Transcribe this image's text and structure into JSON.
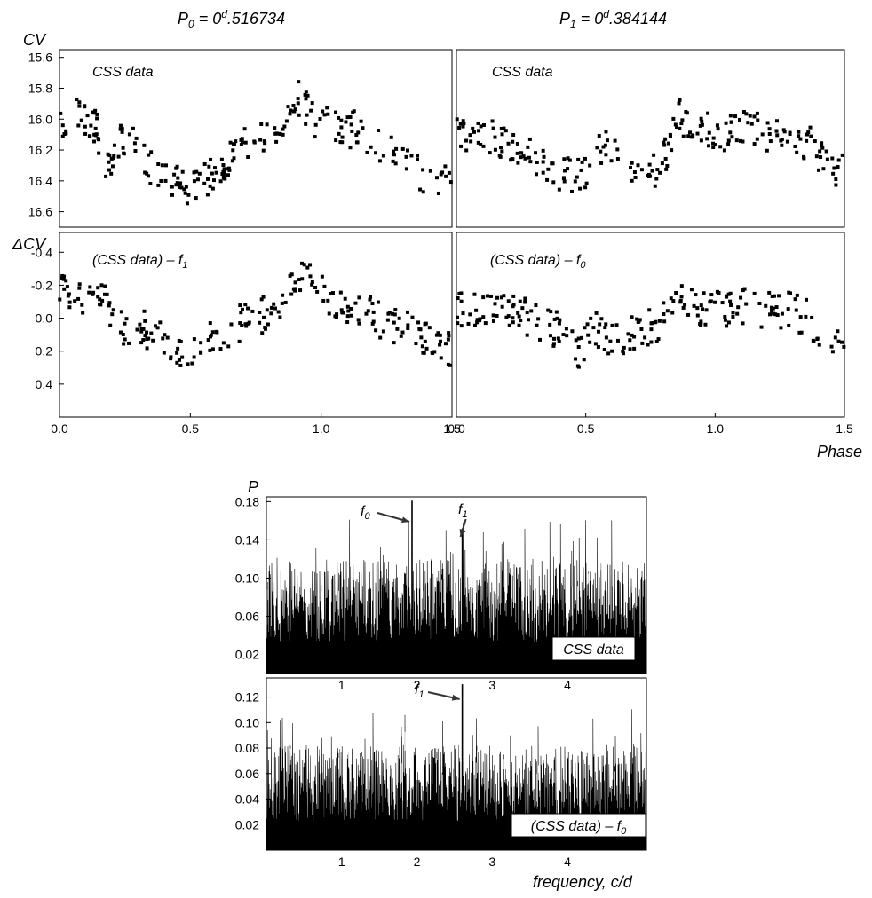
{
  "figure": {
    "period0": {
      "label": "P",
      "sub": "0",
      "eq": " = 0",
      "sup": "d",
      "value": ".516734"
    },
    "period1": {
      "label": "P",
      "sub": "1",
      "eq": " = 0",
      "sup": "d",
      "value": ".384144"
    },
    "ylabel_top": "CV",
    "ylabel_mid": "ΔCV",
    "xlabel_phase": "Phase",
    "ylabel_power": "P",
    "xlabel_freq": "frequency,  c/d"
  },
  "chart_data": [
    {
      "type": "scatter",
      "id": "lc_p0",
      "panel_label": "CSS data",
      "ylabel": "CV",
      "xlabel": "",
      "xlim": [
        0,
        1.5
      ],
      "ylim": [
        16.7,
        15.55
      ],
      "yticks": [
        15.6,
        15.8,
        16.0,
        16.2,
        16.4,
        16.6
      ],
      "xticks": [],
      "anchors": [
        [
          0,
          16.06
        ],
        [
          0.04,
          15.95
        ],
        [
          0.1,
          16.02
        ],
        [
          0.14,
          16.05
        ],
        [
          0.18,
          16.35
        ],
        [
          0.22,
          16.15
        ],
        [
          0.28,
          16.15
        ],
        [
          0.32,
          16.25
        ],
        [
          0.38,
          16.4
        ],
        [
          0.45,
          16.4
        ],
        [
          0.5,
          16.45
        ],
        [
          0.56,
          16.4
        ],
        [
          0.62,
          16.3
        ],
        [
          0.68,
          16.2
        ],
        [
          0.74,
          16.15
        ],
        [
          0.8,
          16.1
        ],
        [
          0.86,
          16.05
        ],
        [
          0.92,
          15.85
        ],
        [
          0.96,
          16.0
        ],
        [
          1.02,
          16.0
        ],
        [
          1.08,
          16.1
        ],
        [
          1.14,
          16.05
        ],
        [
          1.2,
          16.15
        ],
        [
          1.26,
          16.2
        ],
        [
          1.32,
          16.2
        ],
        [
          1.38,
          16.35
        ],
        [
          1.44,
          16.4
        ],
        [
          1.5,
          16.38
        ]
      ]
    },
    {
      "type": "scatter",
      "id": "lc_p1",
      "panel_label": "CSS data",
      "ylabel": "",
      "xlabel": "",
      "xlim": [
        0,
        1.5
      ],
      "ylim": [
        16.7,
        15.55
      ],
      "yticks": [],
      "xticks": [],
      "anchors": [
        [
          0,
          16.1
        ],
        [
          0.06,
          16.1
        ],
        [
          0.12,
          16.1
        ],
        [
          0.2,
          16.15
        ],
        [
          0.28,
          16.2
        ],
        [
          0.34,
          16.3
        ],
        [
          0.4,
          16.35
        ],
        [
          0.46,
          16.38
        ],
        [
          0.52,
          16.3
        ],
        [
          0.58,
          16.15
        ],
        [
          0.64,
          16.3
        ],
        [
          0.7,
          16.4
        ],
        [
          0.76,
          16.35
        ],
        [
          0.82,
          16.2
        ],
        [
          0.86,
          15.95
        ],
        [
          0.9,
          16.1
        ],
        [
          0.96,
          16.05
        ],
        [
          1.04,
          16.1
        ],
        [
          1.12,
          16.05
        ],
        [
          1.2,
          16.1
        ],
        [
          1.28,
          16.15
        ],
        [
          1.36,
          16.15
        ],
        [
          1.44,
          16.3
        ],
        [
          1.5,
          16.35
        ]
      ]
    },
    {
      "type": "scatter",
      "id": "res_p0",
      "panel_label": "(CSS data) – f",
      "panel_sub": "1",
      "ylabel": "ΔCV",
      "xlabel": "",
      "xlim": [
        0,
        1.5
      ],
      "ylim": [
        0.6,
        -0.52
      ],
      "yticks": [
        -0.4,
        -0.2,
        0.0,
        0.2,
        0.4
      ],
      "ytick_labels": [
        "-0.4",
        "-0.2",
        "0.0",
        "0.2",
        "0.4"
      ],
      "xticks": [
        0.0,
        0.5,
        1.0,
        1.5
      ],
      "anchors": [
        [
          0,
          -0.15
        ],
        [
          0.06,
          -0.15
        ],
        [
          0.12,
          -0.1
        ],
        [
          0.18,
          -0.1
        ],
        [
          0.22,
          0.05
        ],
        [
          0.3,
          0.05
        ],
        [
          0.38,
          0.1
        ],
        [
          0.46,
          0.2
        ],
        [
          0.54,
          0.2
        ],
        [
          0.6,
          0.1
        ],
        [
          0.66,
          0.05
        ],
        [
          0.74,
          0.0
        ],
        [
          0.82,
          -0.05
        ],
        [
          0.88,
          -0.2
        ],
        [
          0.94,
          -0.3
        ],
        [
          1.0,
          -0.15
        ],
        [
          1.06,
          -0.1
        ],
        [
          1.12,
          -0.05
        ],
        [
          1.18,
          -0.1
        ],
        [
          1.24,
          0.05
        ],
        [
          1.3,
          0.05
        ],
        [
          1.36,
          0.1
        ],
        [
          1.42,
          0.15
        ],
        [
          1.5,
          0.2
        ]
      ]
    },
    {
      "type": "scatter",
      "id": "res_p1",
      "panel_label": "(CSS data) – f",
      "panel_sub": "0",
      "ylabel": "",
      "xlabel": "Phase",
      "xlim": [
        0,
        1.5
      ],
      "ylim": [
        0.6,
        -0.52
      ],
      "yticks": [],
      "xticks": [
        0.0,
        0.5,
        1.0,
        1.5
      ],
      "anchors": [
        [
          0,
          -0.05
        ],
        [
          0.06,
          -0.05
        ],
        [
          0.12,
          -0.07
        ],
        [
          0.2,
          -0.05
        ],
        [
          0.28,
          0.0
        ],
        [
          0.36,
          0.05
        ],
        [
          0.42,
          0.1
        ],
        [
          0.48,
          0.2
        ],
        [
          0.54,
          0.05
        ],
        [
          0.6,
          0.15
        ],
        [
          0.66,
          0.1
        ],
        [
          0.72,
          0.05
        ],
        [
          0.78,
          0.05
        ],
        [
          0.84,
          -0.15
        ],
        [
          0.9,
          -0.1
        ],
        [
          0.96,
          -0.05
        ],
        [
          1.04,
          -0.05
        ],
        [
          1.12,
          -0.07
        ],
        [
          1.2,
          -0.05
        ],
        [
          1.28,
          -0.05
        ],
        [
          1.36,
          0.0
        ],
        [
          1.42,
          0.1
        ],
        [
          1.5,
          0.2
        ]
      ]
    },
    {
      "type": "bar",
      "id": "spec_raw",
      "panel_label": "CSS data",
      "ylabel": "P",
      "xlabel": "",
      "xlim": [
        0.0,
        5.05
      ],
      "ylim": [
        0,
        0.185
      ],
      "yticks": [
        0.02,
        0.06,
        0.1,
        0.14,
        0.18
      ],
      "ytick_labels": [
        "0.02",
        "0.06",
        "0.10",
        "0.14",
        "0.18"
      ],
      "xticks": [
        1,
        2,
        3,
        4
      ],
      "peaks": [
        {
          "name": "f0",
          "x": 1.935,
          "value": 0.181
        },
        {
          "name": "f1",
          "x": 2.603,
          "value": 0.152
        }
      ]
    },
    {
      "type": "bar",
      "id": "spec_res",
      "panel_label": "(CSS data) – f",
      "panel_sub": "0",
      "ylabel": "",
      "xlabel": "frequency,  c/d",
      "xlim": [
        0.0,
        5.05
      ],
      "ylim": [
        0,
        0.135
      ],
      "yticks": [
        0.02,
        0.04,
        0.06,
        0.08,
        0.1,
        0.12
      ],
      "ytick_labels": [
        "0.02",
        "0.04",
        "0.06",
        "0.08",
        "0.10",
        "0.12"
      ],
      "xticks": [
        1,
        2,
        3,
        4
      ],
      "peaks": [
        {
          "name": "f1",
          "x": 2.603,
          "value": 0.13
        }
      ]
    }
  ]
}
